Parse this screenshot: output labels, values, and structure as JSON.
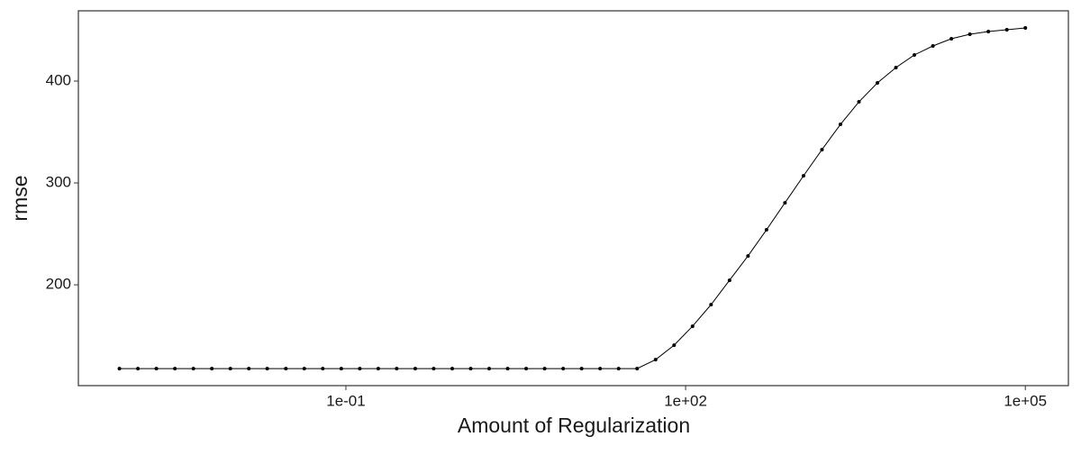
{
  "chart_data": {
    "type": "line",
    "xlabel": "Amount of Regularization",
    "ylabel": "rmse",
    "log_x": true,
    "x": [
      0.001,
      0.001456,
      0.00212,
      0.00309,
      0.0045,
      0.00655,
      0.00954,
      0.0139,
      0.0202,
      0.0295,
      0.0429,
      0.0625,
      0.091,
      0.1326,
      0.193,
      0.281,
      0.4095,
      0.596,
      0.869,
      1.265,
      1.842,
      2.683,
      3.907,
      5.69,
      8.29,
      12.07,
      17.58,
      25.6,
      37.28,
      54.3,
      79.1,
      115.1,
      167.7,
      244.2,
      355.6,
      518,
      754,
      1099,
      1600,
      2330,
      3393,
      4942,
      7197,
      10481,
      15264,
      22230,
      32375,
      47149,
      68665,
      100000
    ],
    "series": [
      {
        "color": "#000000",
        "values": [
          117.7,
          117.7,
          117.7,
          117.7,
          117.7,
          117.7,
          117.7,
          117.7,
          117.7,
          117.7,
          117.7,
          117.7,
          117.7,
          117.7,
          117.7,
          117.7,
          117.7,
          117.7,
          117.7,
          117.7,
          117.7,
          117.7,
          117.7,
          117.7,
          117.7,
          117.7,
          117.7,
          117.7,
          117.7,
          126.5,
          140.7,
          159.3,
          180.5,
          204.4,
          228.3,
          254,
          280.5,
          307,
          332.7,
          357.5,
          379.6,
          398.2,
          413.3,
          425.7,
          434.5,
          441.6,
          446,
          448.7,
          450.4,
          452.2
        ]
      }
    ],
    "xlim": [
      0.000434,
      240000
    ],
    "xticks": [
      {
        "value": 0.1,
        "label": "1e-01"
      },
      {
        "value": 100,
        "label": "1e+02"
      },
      {
        "value": 100000,
        "label": "1e+05"
      }
    ],
    "ylim": [
      101,
      469
    ],
    "yticks": [
      200,
      300,
      400
    ]
  }
}
